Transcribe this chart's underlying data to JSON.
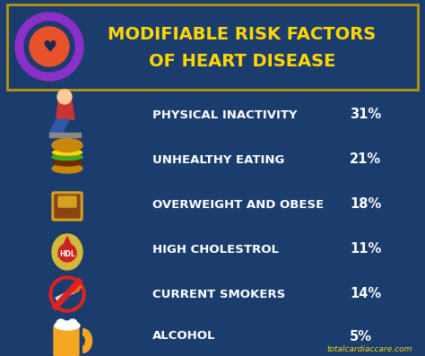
{
  "title_line1": "MODIFIABLE RISK FACTORS",
  "title_line2": "OF HEART DISEASE",
  "title_color": "#FFD700",
  "bg_color": "#1b3d6e",
  "border_color": "#B8960C",
  "label_color": "#FFFFFF",
  "percent_color": "#FFFFFF",
  "website": "totalcardiaccare.com",
  "website_color": "#FFD700",
  "factors": [
    {
      "label": "PHYSICAL INACTIVITY",
      "value": "31%"
    },
    {
      "label": "UNHEALTHY EATING",
      "value": "21%"
    },
    {
      "label": "OVERWEIGHT AND OBESE",
      "value": "18%"
    },
    {
      "label": "HIGH CHOLESTROL",
      "value": "11%"
    },
    {
      "label": "CURRENT SMOKERS",
      "value": "14%"
    },
    {
      "label": "ALCOHOL",
      "value": "5%"
    }
  ],
  "figsize": [
    4.74,
    3.97
  ],
  "dpi": 100
}
